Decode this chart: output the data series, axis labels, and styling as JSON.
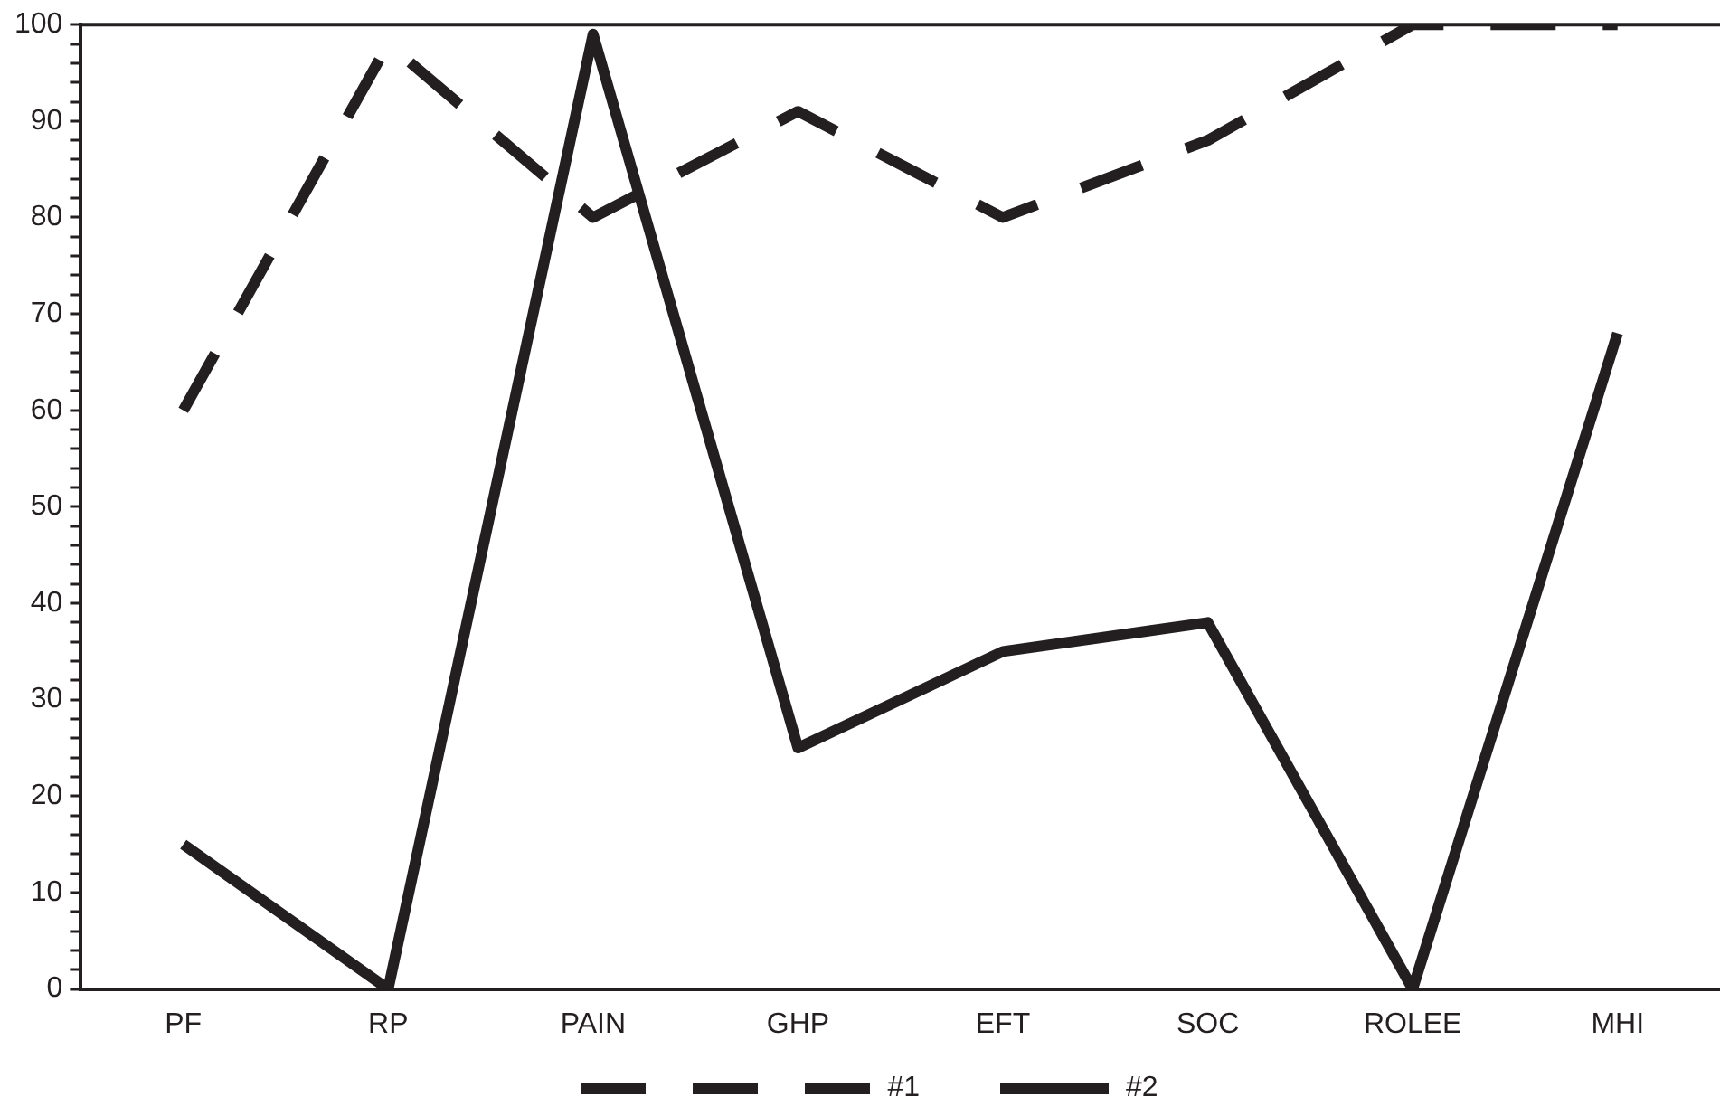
{
  "chart_data": {
    "type": "line",
    "categories": [
      "PF",
      "RP",
      "PAIN",
      "GHP",
      "EFT",
      "SOC",
      "ROLEE",
      "MHI"
    ],
    "series": [
      {
        "name": "#1",
        "color": "#231f20",
        "line_style": "dashed",
        "values": [
          60,
          98,
          80,
          91,
          80,
          88,
          100,
          100
        ]
      },
      {
        "name": "#2",
        "color": "#231f20",
        "line_style": "solid",
        "values": [
          15,
          0,
          99,
          25,
          35,
          38,
          0,
          68
        ]
      }
    ],
    "ylim": [
      0,
      100
    ],
    "yticks": [
      0,
      {
        "value": 2,
        "label": null
      },
      {
        "value": 4,
        "label": null
      },
      {
        "value": 6,
        "label": null
      },
      {
        "value": 8,
        "label": null
      },
      10,
      {
        "value": 12,
        "label": null
      },
      {
        "value": 14,
        "label": null
      },
      {
        "value": 16,
        "label": null
      },
      {
        "value": 18,
        "label": null
      },
      20,
      {
        "value": 22,
        "label": null
      },
      {
        "value": 24,
        "label": null
      },
      {
        "value": 26,
        "label": null
      },
      {
        "value": 28,
        "label": null
      },
      30,
      {
        "value": 32,
        "label": null
      },
      {
        "value": 34,
        "label": null
      },
      {
        "value": 36,
        "label": null
      },
      {
        "value": 38,
        "label": null
      },
      40,
      {
        "value": 42,
        "label": null
      },
      {
        "value": 44,
        "label": null
      },
      {
        "value": 46,
        "label": null
      },
      {
        "value": 48,
        "label": null
      },
      50,
      {
        "value": 52,
        "label": null
      },
      {
        "value": 54,
        "label": null
      },
      {
        "value": 56,
        "label": null
      },
      {
        "value": 58,
        "label": null
      },
      60,
      {
        "value": 62,
        "label": null
      },
      {
        "value": 64,
        "label": null
      },
      {
        "value": 66,
        "label": null
      },
      {
        "value": 68,
        "label": null
      },
      70,
      {
        "value": 72,
        "label": null
      },
      {
        "value": 74,
        "label": null
      },
      {
        "value": 76,
        "label": null
      },
      {
        "value": 78,
        "label": null
      },
      80,
      {
        "value": 82,
        "label": null
      },
      {
        "value": 84,
        "label": null
      },
      {
        "value": 86,
        "label": null
      },
      {
        "value": 88,
        "label": null
      },
      90,
      {
        "value": 92,
        "label": null
      },
      {
        "value": 94,
        "label": null
      },
      {
        "value": 96,
        "label": null
      },
      {
        "value": 98,
        "label": null
      },
      100
    ],
    "grid": false,
    "legend": "bottom",
    "marker": "none"
  }
}
